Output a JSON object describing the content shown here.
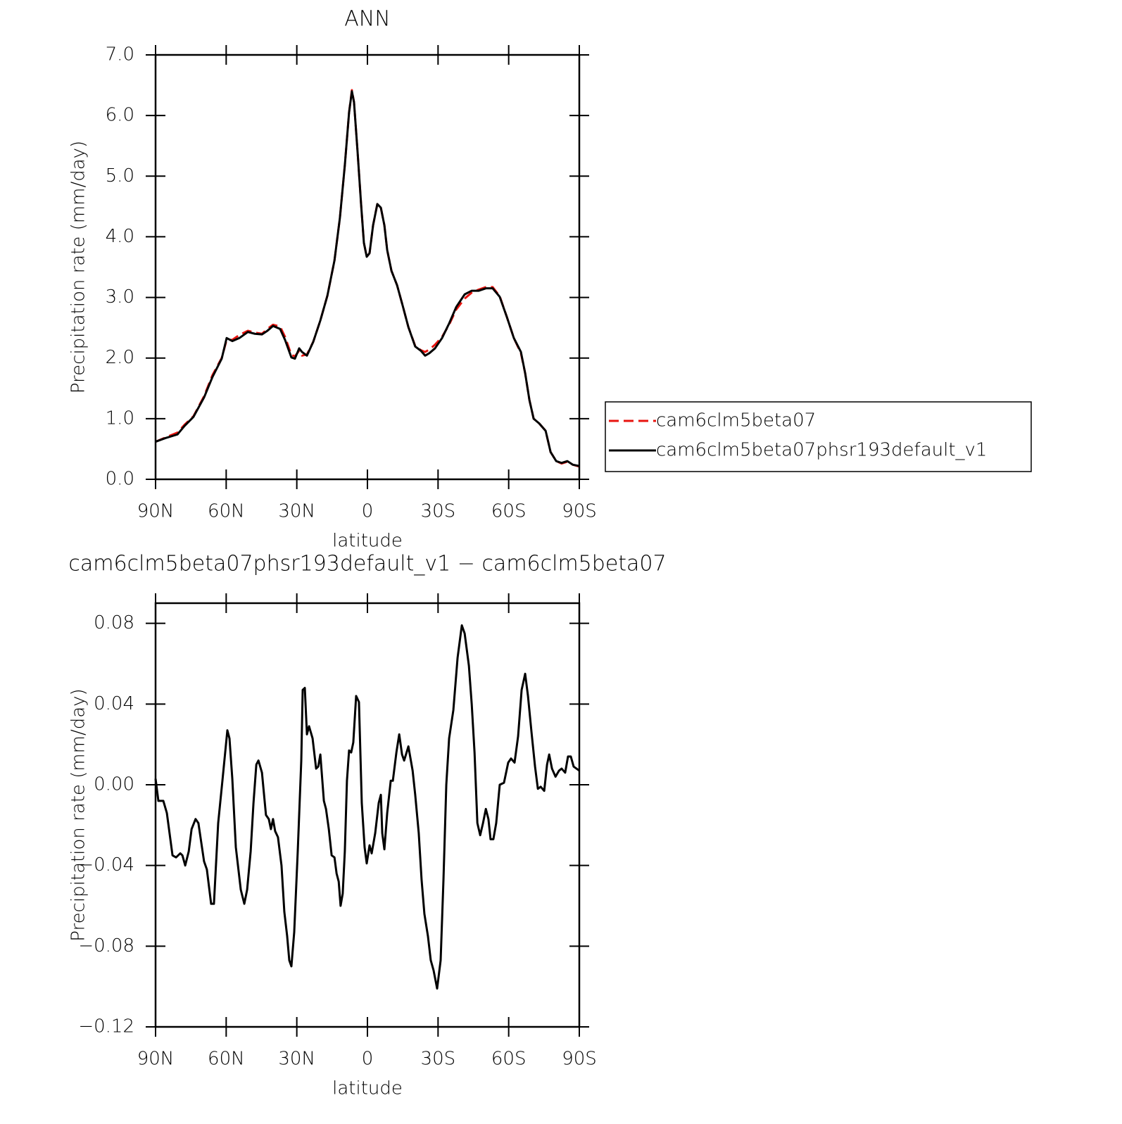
{
  "chart_data": [
    {
      "type": "line",
      "title": "ANN",
      "xlabel": "latitude",
      "ylabel": "Precipitation rate (mm/day)",
      "xlim": [
        90,
        -90
      ],
      "xticks": [
        {
          "value": 90,
          "label": "90N"
        },
        {
          "value": 60,
          "label": "60N"
        },
        {
          "value": 30,
          "label": "30N"
        },
        0,
        {
          "value": -30,
          "label": "30S"
        },
        {
          "value": -60,
          "label": "60S"
        },
        {
          "value": -90,
          "label": "90S"
        }
      ],
      "ylim": [
        0,
        7
      ],
      "yticks": [
        {
          "value": 0,
          "label": "0.0"
        },
        {
          "value": 1,
          "label": "1.0"
        },
        {
          "value": 2,
          "label": "2.0"
        },
        {
          "value": 3,
          "label": "3.0"
        },
        {
          "value": 4,
          "label": "4.0"
        },
        {
          "value": 5,
          "label": "5.0"
        },
        {
          "value": 6,
          "label": "6.0"
        },
        {
          "value": 7,
          "label": "7.0"
        }
      ],
      "x": [
        90,
        85.8,
        80.7,
        77.7,
        73.9,
        69.4,
        65.8,
        61.9,
        59.8,
        57.4,
        54.4,
        50.8,
        47.8,
        44.8,
        42.5,
        40.1,
        37.1,
        35.0,
        32.3,
        30.8,
        29.0,
        27.8,
        25.7,
        23.0,
        20.0,
        17.0,
        14.0,
        11.7,
        9.6,
        7.8,
        6.6,
        5.7,
        4.2,
        2.7,
        1.5,
        0.3,
        -0.9,
        -2.4,
        -4.2,
        -5.7,
        -7.2,
        -8.4,
        -10.2,
        -12.6,
        -15.0,
        -17.4,
        -20.3,
        -22.7,
        -24.5,
        -26.3,
        -28.7,
        -31.7,
        -34.7,
        -37.7,
        -41.3,
        -44.3,
        -47.3,
        -50.3,
        -53.2,
        -56.2,
        -59.2,
        -62.2,
        -65.2,
        -67.0,
        -68.8,
        -70.6,
        -73.0,
        -75.7,
        -77.8,
        -80.2,
        -82.5,
        -84.9,
        -87.3,
        -90
      ],
      "series": [
        {
          "name": "cam6clm5beta07",
          "color": "#e8140f",
          "style": "dashed",
          "values": [
            0.62,
            0.69,
            0.77,
            0.9,
            1.04,
            1.37,
            1.72,
            2.0,
            2.3,
            2.3,
            2.38,
            2.45,
            2.42,
            2.4,
            2.48,
            2.55,
            2.52,
            2.35,
            2.05,
            2.03,
            2.12,
            2.04,
            2.06,
            2.27,
            2.62,
            3.03,
            3.61,
            4.31,
            5.18,
            6.05,
            6.42,
            6.22,
            5.41,
            4.54,
            3.9,
            3.67,
            3.73,
            4.19,
            4.54,
            4.48,
            4.19,
            3.78,
            3.44,
            3.2,
            2.86,
            2.51,
            2.2,
            2.13,
            2.1,
            2.14,
            2.22,
            2.35,
            2.55,
            2.8,
            2.98,
            3.08,
            3.13,
            3.17,
            3.17,
            3.02,
            2.68,
            2.33,
            2.08,
            1.75,
            1.31,
            1.0,
            0.92,
            0.8,
            0.45,
            0.3,
            0.26,
            0.29,
            0.24,
            0.21
          ]
        },
        {
          "name": "cam6clm5beta07phsr193default_v1",
          "color": "#000000",
          "style": "solid",
          "values": [
            0.62,
            0.68,
            0.74,
            0.88,
            1.03,
            1.35,
            1.69,
            1.99,
            2.33,
            2.28,
            2.33,
            2.43,
            2.4,
            2.39,
            2.45,
            2.53,
            2.48,
            2.3,
            2.01,
            1.99,
            2.16,
            2.1,
            2.04,
            2.27,
            2.62,
            3.03,
            3.61,
            4.31,
            5.18,
            6.05,
            6.4,
            6.22,
            5.41,
            4.54,
            3.9,
            3.67,
            3.73,
            4.19,
            4.54,
            4.48,
            4.19,
            3.78,
            3.44,
            3.2,
            2.86,
            2.51,
            2.19,
            2.12,
            2.04,
            2.08,
            2.16,
            2.33,
            2.57,
            2.84,
            3.05,
            3.11,
            3.11,
            3.15,
            3.15,
            3.01,
            2.68,
            2.33,
            2.1,
            1.75,
            1.31,
            1.0,
            0.92,
            0.8,
            0.45,
            0.3,
            0.27,
            0.3,
            0.24,
            0.22
          ]
        }
      ]
    },
    {
      "type": "line",
      "title": "cam6clm5beta07phsr193default_v1 − cam6clm5beta07",
      "xlabel": "latitude",
      "ylabel": "Precipitation rate (mm/day)",
      "xlim": [
        90,
        -90
      ],
      "xticks": [
        {
          "value": 90,
          "label": "90N"
        },
        {
          "value": 60,
          "label": "60N"
        },
        {
          "value": 30,
          "label": "30N"
        },
        0,
        {
          "value": -30,
          "label": "30S"
        },
        {
          "value": -60,
          "label": "60S"
        },
        {
          "value": -90,
          "label": "90S"
        }
      ],
      "ylim": [
        -0.12,
        0.09
      ],
      "yticks": [
        {
          "value": -0.12,
          "label": "−0.12"
        },
        {
          "value": -0.08,
          "label": "−0.08"
        },
        {
          "value": -0.04,
          "label": "−0.04"
        },
        {
          "value": 0,
          "label": "0.00"
        },
        0.04,
        0.08
      ],
      "x": [
        90,
        88.8,
        86.7,
        85.2,
        82.8,
        81.3,
        79.5,
        78.6,
        77.4,
        75.9,
        74.7,
        73.0,
        71.8,
        69.4,
        68.2,
        66.4,
        65.2,
        63.4,
        61.6,
        59.5,
        58.6,
        57.4,
        55.9,
        53.8,
        52.3,
        51.1,
        49.6,
        48.4,
        47.2,
        46.3,
        44.8,
        43.1,
        41.9,
        41.0,
        40.1,
        39.2,
        38.0,
        36.5,
        35.3,
        34.1,
        33.2,
        32.3,
        31.1,
        29.6,
        28.1,
        27.5,
        26.6,
        25.7,
        24.8,
        23.3,
        21.8,
        20.9,
        20.0,
        18.5,
        17.6,
        16.4,
        15.2,
        14.0,
        13.1,
        12.2,
        11.4,
        10.5,
        9.6,
        8.7,
        7.8,
        6.9,
        6.0,
        4.8,
        3.6,
        2.4,
        1.2,
        0.3,
        -0.9,
        -1.8,
        -3.3,
        -4.8,
        -5.7,
        -6.3,
        -7.2,
        -8.4,
        -9.9,
        -10.8,
        -12.3,
        -13.5,
        -14.7,
        -15.6,
        -17.4,
        -19.2,
        -20.3,
        -21.8,
        -23.0,
        -24.2,
        -25.7,
        -26.9,
        -28.1,
        -29.6,
        -31.1,
        -32.3,
        -33.5,
        -34.7,
        -36.5,
        -38.3,
        -40.1,
        -41.3,
        -43.1,
        -44.3,
        -45.5,
        -46.7,
        -47.9,
        -49.1,
        -50.3,
        -51.4,
        -52.3,
        -53.5,
        -54.7,
        -56.2,
        -58.0,
        -59.8,
        -61.0,
        -62.5,
        -64.0,
        -65.5,
        -67.0,
        -68.2,
        -69.7,
        -71.2,
        -72.4,
        -73.6,
        -75.1,
        -76.3,
        -77.2,
        -78.4,
        -79.9,
        -81.4,
        -82.5,
        -84.0,
        -85.2,
        -86.4,
        -87.6,
        -90
      ],
      "series": [
        {
          "name": "cam6clm5beta07phsr193default_v1 − cam6clm5beta07",
          "color": "#000000",
          "style": "solid",
          "values": [
            0.003,
            -0.008,
            -0.008,
            -0.014,
            -0.035,
            -0.036,
            -0.034,
            -0.035,
            -0.04,
            -0.033,
            -0.022,
            -0.017,
            -0.019,
            -0.038,
            -0.042,
            -0.059,
            -0.059,
            -0.019,
            0.002,
            0.027,
            0.023,
            0.003,
            -0.031,
            -0.052,
            -0.059,
            -0.052,
            -0.033,
            -0.009,
            0.01,
            0.012,
            0.006,
            -0.015,
            -0.017,
            -0.022,
            -0.017,
            -0.023,
            -0.026,
            -0.04,
            -0.063,
            -0.075,
            -0.087,
            -0.09,
            -0.073,
            -0.033,
            0.012,
            0.047,
            0.048,
            0.025,
            0.029,
            0.023,
            0.008,
            0.009,
            0.015,
            -0.008,
            -0.012,
            -0.022,
            -0.035,
            -0.036,
            -0.044,
            -0.048,
            -0.06,
            -0.054,
            -0.033,
            0.002,
            0.017,
            0.016,
            0.021,
            0.044,
            0.041,
            -0.009,
            -0.031,
            -0.039,
            -0.03,
            -0.034,
            -0.024,
            -0.009,
            -0.005,
            -0.024,
            -0.032,
            -0.014,
            0.002,
            0.002,
            0.016,
            0.025,
            0.015,
            0.012,
            0.019,
            0.007,
            -0.005,
            -0.024,
            -0.047,
            -0.064,
            -0.075,
            -0.087,
            -0.092,
            -0.101,
            -0.087,
            -0.047,
            0.0,
            0.023,
            0.037,
            0.063,
            0.079,
            0.075,
            0.059,
            0.04,
            0.016,
            -0.019,
            -0.025,
            -0.019,
            -0.012,
            -0.017,
            -0.027,
            -0.027,
            -0.019,
            0.0,
            0.001,
            0.011,
            0.013,
            0.011,
            0.024,
            0.047,
            0.055,
            0.044,
            0.026,
            0.009,
            -0.002,
            -0.001,
            -0.003,
            0.01,
            0.015,
            0.008,
            0.004,
            0.007,
            0.008,
            0.006,
            0.014,
            0.014,
            0.009,
            0.007
          ]
        }
      ]
    }
  ]
}
